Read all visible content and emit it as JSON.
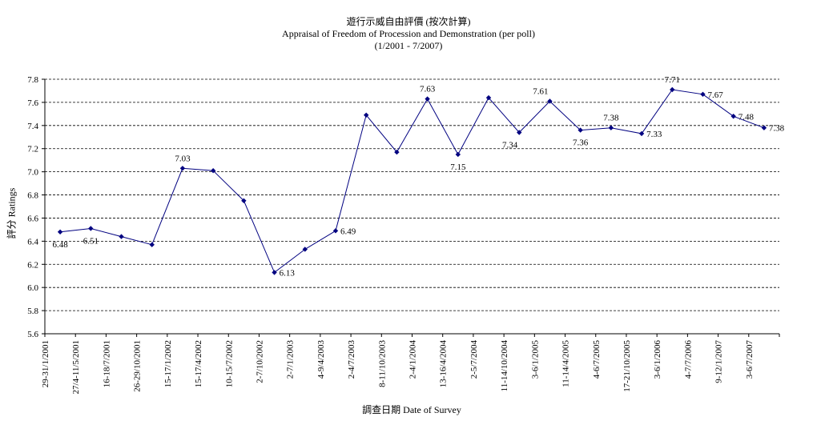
{
  "chart_data": {
    "type": "line",
    "title_zh": "遊行示威自由評價 (按次計算)",
    "title_en": "Appraisal of Freedom of Procession and Demonstration (per poll)",
    "subtitle": "(1/2001 - 7/2007)",
    "ylabel": "評分 Ratings",
    "xlabel": "調查日期 Date of Survey",
    "ylim": [
      5.6,
      7.8
    ],
    "yticks": [
      "5.6",
      "5.8",
      "6.0",
      "6.2",
      "6.4",
      "6.6",
      "6.8",
      "7.0",
      "7.2",
      "7.4",
      "7.6",
      "7.8"
    ],
    "grid": true,
    "line_color": "#000080",
    "categories": [
      "29-31/1/2001",
      "27/4-11/5/2001",
      "16-18/7/2001",
      "26-29/10/2001",
      "15-17/1/2002",
      "15-17/4/2002",
      "10-15/7/2002",
      "2-7/10/2002",
      "2-7/1/2003",
      "4-9/4/2003",
      "2-4/7/2003",
      "8-11/10/2003",
      "2-4/1/2004",
      "13-16/4/2004",
      "2-5/7/2004",
      "11-14/10/2004",
      "3-6/1/2005",
      "11-14/4/2005",
      "4-6/7/2005",
      "17-21/10/2005",
      "3-6/1/2006",
      "4-7/7/2006",
      "9-12/1/2007",
      "3-6/7/2007"
    ],
    "values": [
      6.48,
      6.51,
      6.44,
      6.37,
      7.03,
      7.01,
      6.75,
      6.13,
      6.33,
      6.49,
      7.49,
      7.17,
      7.63,
      7.15,
      7.64,
      7.34,
      7.61,
      7.36,
      7.38,
      7.33,
      7.71,
      7.67,
      7.48,
      7.38
    ],
    "data_labels": [
      {
        "index": 0,
        "text": "6.48",
        "pos": "below"
      },
      {
        "index": 1,
        "text": "6.51",
        "pos": "below"
      },
      {
        "index": 4,
        "text": "7.03",
        "pos": "above"
      },
      {
        "index": 7,
        "text": "6.13",
        "pos": "right"
      },
      {
        "index": 9,
        "text": "6.49",
        "pos": "right"
      },
      {
        "index": 12,
        "text": "7.63",
        "pos": "above"
      },
      {
        "index": 13,
        "text": "7.15",
        "pos": "below"
      },
      {
        "index": 15,
        "text": "7.34",
        "pos": "below-left"
      },
      {
        "index": 16,
        "text": "7.61",
        "pos": "above-left"
      },
      {
        "index": 17,
        "text": "7.36",
        "pos": "below"
      },
      {
        "index": 18,
        "text": "7.38",
        "pos": "above"
      },
      {
        "index": 19,
        "text": "7.33",
        "pos": "right"
      },
      {
        "index": 20,
        "text": "7.71",
        "pos": "above"
      },
      {
        "index": 21,
        "text": "7.67",
        "pos": "right"
      },
      {
        "index": 22,
        "text": "7.48",
        "pos": "right"
      },
      {
        "index": 23,
        "text": "7.38",
        "pos": "right"
      }
    ]
  }
}
